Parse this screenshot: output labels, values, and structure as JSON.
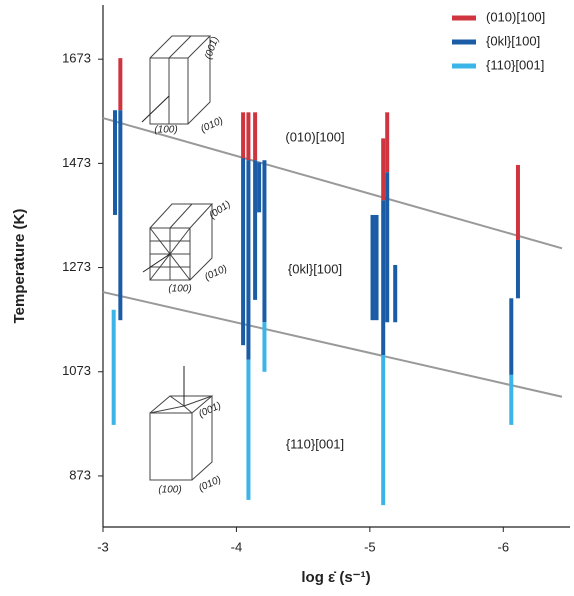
{
  "chart_data": {
    "type": "range-bar",
    "x_label": "log ε̇ (s⁻¹)",
    "y_label": "Temperature (K)",
    "xlim": [
      -3,
      -6.5
    ],
    "ylim": [
      775,
      1777
    ],
    "xticks": [
      -3,
      -4,
      -5,
      -6
    ],
    "yticks": [
      873,
      1073,
      1273,
      1473,
      1673
    ],
    "legend": "upper right",
    "grid": false,
    "series": [
      {
        "name": "(010)[100]",
        "color": "#d0343e",
        "x": [
          -3.13,
          -4.05,
          -4.09,
          -4.14,
          -5.1,
          -5.13,
          -6.11
        ],
        "low": [
          1575,
          1483,
          1479,
          1479,
          1402,
          1456,
          1326
        ],
        "high": [
          1675,
          1571,
          1571,
          1571,
          1521,
          1571,
          1470
        ]
      },
      {
        "name": "{0kl}[100]",
        "color": "#1a5ca6",
        "x": [
          -3.09,
          -3.13,
          -4.05,
          -4.09,
          -4.14,
          -4.17,
          -4.21,
          -5.02,
          -5.05,
          -5.1,
          -5.13,
          -5.19,
          -6.06,
          -6.11
        ],
        "low": [
          1374,
          1172,
          1124,
          1096,
          1211,
          1379,
          1168,
          1172,
          1172,
          1105,
          1168,
          1168,
          1067,
          1214
        ],
        "high": [
          1575,
          1575,
          1483,
          1479,
          1479,
          1475,
          1479,
          1374,
          1374,
          1402,
          1456,
          1278,
          1214,
          1326
        ]
      },
      {
        "name": "{110}[001]",
        "color": "#3bb5e8",
        "x": [
          -3.08,
          -4.09,
          -4.21,
          -5.1,
          -6.06
        ],
        "low": [
          971,
          827,
          1073,
          817,
          971
        ],
        "high": [
          1192,
          1096,
          1168,
          1105,
          1067
        ]
      }
    ],
    "trend_lines": [
      {
        "color": "#999999",
        "x": [
          -3,
          -6.44
        ],
        "y": [
          1560,
          1310
        ]
      },
      {
        "color": "#999999",
        "x": [
          -3,
          -6.44
        ],
        "y": [
          1226,
          1025
        ]
      }
    ],
    "annotations": [
      "(010)[100]",
      "{0kl}[100]",
      "{110}[001]"
    ]
  },
  "sketches": [
    {
      "labels": [
        "(001)",
        "(100)",
        "(010)"
      ]
    },
    {
      "labels": [
        "(001)",
        "(100)",
        "(010)"
      ]
    },
    {
      "labels": [
        "(001)",
        "(100)",
        "(010)"
      ]
    }
  ]
}
